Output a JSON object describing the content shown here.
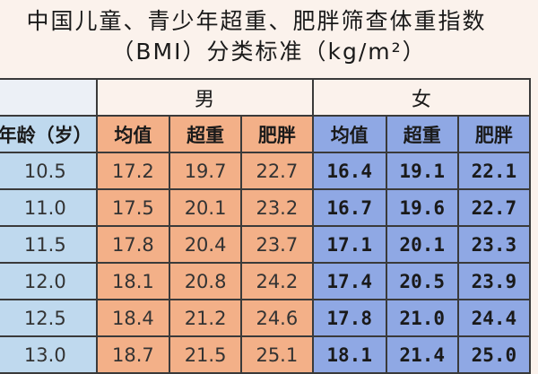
{
  "title": {
    "line1": "中国儿童、青少年超重、肥胖筛查体重指数",
    "line2": "（BMI）分类标准（kg/m²）"
  },
  "table": {
    "group_male": "男",
    "group_female": "女",
    "age_header": "年龄（岁）",
    "col_headers": [
      "均值",
      "超重",
      "肥胖",
      "均值",
      "超重",
      "肥胖"
    ],
    "rows": [
      {
        "age": "10.5",
        "m_mean": "17.2",
        "m_over": "19.7",
        "m_obese": "22.7",
        "f_mean": "16.4",
        "f_over": "19.1",
        "f_obese": "22.1"
      },
      {
        "age": "11.0",
        "m_mean": "17.5",
        "m_over": "20.1",
        "m_obese": "23.2",
        "f_mean": "16.7",
        "f_over": "19.6",
        "f_obese": "22.7"
      },
      {
        "age": "11.5",
        "m_mean": "17.8",
        "m_over": "20.4",
        "m_obese": "23.7",
        "f_mean": "17.1",
        "f_over": "20.1",
        "f_obese": "23.3"
      },
      {
        "age": "12.0",
        "m_mean": "18.1",
        "m_over": "20.8",
        "m_obese": "24.2",
        "f_mean": "17.4",
        "f_over": "20.5",
        "f_obese": "23.9"
      },
      {
        "age": "12.5",
        "m_mean": "18.4",
        "m_over": "21.2",
        "m_obese": "24.6",
        "f_mean": "17.8",
        "f_over": "21.0",
        "f_obese": "24.4"
      },
      {
        "age": "13.0",
        "m_mean": "18.7",
        "m_over": "21.5",
        "m_obese": "25.1",
        "f_mean": "18.1",
        "f_over": "21.4",
        "f_obese": "25.0"
      }
    ]
  },
  "colors": {
    "background": "#fbf2ec",
    "age_column": "#bfd9ee",
    "male_columns": "#f3b088",
    "female_columns": "#8fa8e4"
  }
}
